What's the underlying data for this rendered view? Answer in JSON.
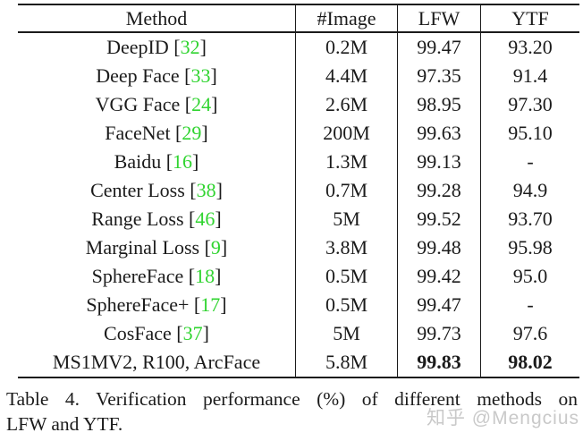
{
  "table": {
    "headers": [
      "Method",
      "#Image",
      "LFW",
      "YTF"
    ],
    "rows": [
      {
        "method": "DeepID",
        "cite": "32",
        "images": "0.2M",
        "lfw": "99.47",
        "ytf": "93.20",
        "bold_scores": false
      },
      {
        "method": "Deep Face",
        "cite": "33",
        "images": "4.4M",
        "lfw": "97.35",
        "ytf": "91.4",
        "bold_scores": false
      },
      {
        "method": "VGG Face",
        "cite": "24",
        "images": "2.6M",
        "lfw": "98.95",
        "ytf": "97.30",
        "bold_scores": false
      },
      {
        "method": "FaceNet",
        "cite": "29",
        "images": "200M",
        "lfw": "99.63",
        "ytf": "95.10",
        "bold_scores": false
      },
      {
        "method": "Baidu",
        "cite": "16",
        "images": "1.3M",
        "lfw": "99.13",
        "ytf": "-",
        "bold_scores": false
      },
      {
        "method": "Center Loss",
        "cite": "38",
        "images": "0.7M",
        "lfw": "99.28",
        "ytf": "94.9",
        "bold_scores": false
      },
      {
        "method": "Range Loss",
        "cite": "46",
        "images": "5M",
        "lfw": "99.52",
        "ytf": "93.70",
        "bold_scores": false
      },
      {
        "method": "Marginal Loss",
        "cite": "9",
        "images": "3.8M",
        "lfw": "99.48",
        "ytf": "95.98",
        "bold_scores": false
      },
      {
        "method": "SphereFace",
        "cite": "18",
        "images": "0.5M",
        "lfw": "99.42",
        "ytf": "95.0",
        "bold_scores": false
      },
      {
        "method": "SphereFace+",
        "cite": "17",
        "images": "0.5M",
        "lfw": "99.47",
        "ytf": "-",
        "bold_scores": false
      },
      {
        "method": "CosFace",
        "cite": "37",
        "images": "5M",
        "lfw": "99.73",
        "ytf": "97.6",
        "bold_scores": false
      },
      {
        "method": "MS1MV2, R100, ArcFace",
        "cite": null,
        "images": "5.8M",
        "lfw": "99.83",
        "ytf": "98.02",
        "bold_scores": true
      }
    ]
  },
  "caption": {
    "full": "Table 4. Verification performance (%) of different methods on LFW and YTF.",
    "line1": "Table 4. Verification performance (%) of different methods on",
    "line2": "LFW and YTF."
  },
  "watermark": {
    "text": "知乎 @Mengcius"
  },
  "colors": {
    "citation_green": "#30d430",
    "text": "#1b1b1b",
    "rule": "#1b1b1b",
    "watermark": "#c9c9c9"
  },
  "chart_data": {
    "type": "table",
    "title": "Table 4. Verification performance (%) of different methods on LFW and YTF.",
    "columns": [
      "Method",
      "#Image",
      "LFW",
      "YTF"
    ],
    "rows": [
      [
        "DeepID [32]",
        "0.2M",
        "99.47",
        "93.20"
      ],
      [
        "Deep Face [33]",
        "4.4M",
        "97.35",
        "91.4"
      ],
      [
        "VGG Face [24]",
        "2.6M",
        "98.95",
        "97.30"
      ],
      [
        "FaceNet [29]",
        "200M",
        "99.63",
        "95.10"
      ],
      [
        "Baidu [16]",
        "1.3M",
        "99.13",
        "-"
      ],
      [
        "Center Loss [38]",
        "0.7M",
        "99.28",
        "94.9"
      ],
      [
        "Range Loss [46]",
        "5M",
        "99.52",
        "93.70"
      ],
      [
        "Marginal Loss [9]",
        "3.8M",
        "99.48",
        "95.98"
      ],
      [
        "SphereFace [18]",
        "0.5M",
        "99.42",
        "95.0"
      ],
      [
        "SphereFace+ [17]",
        "0.5M",
        "99.47",
        "-"
      ],
      [
        "CosFace [37]",
        "5M",
        "99.73",
        "97.6"
      ],
      [
        "MS1MV2, R100, ArcFace",
        "5.8M",
        "99.83",
        "98.02"
      ]
    ]
  }
}
